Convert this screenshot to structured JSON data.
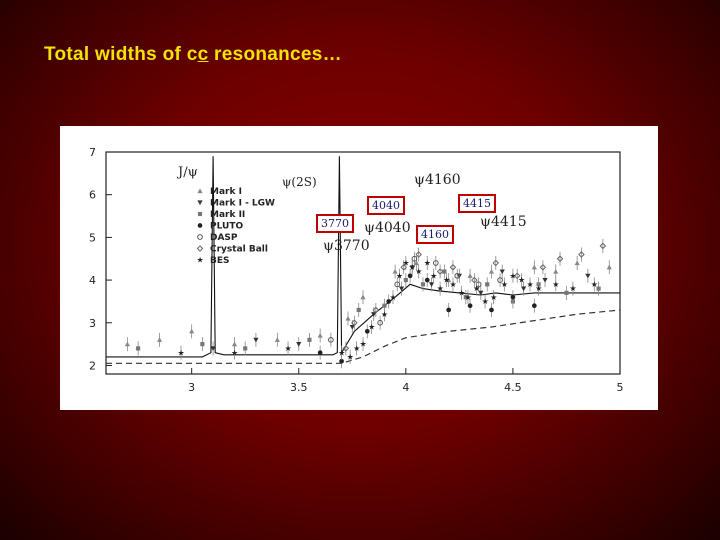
{
  "slide": {
    "title_pre": "Total widths of c",
    "title_cc": "c",
    "title_post": " resonances…"
  },
  "colors": {
    "background": "#6e0000",
    "title": "#f2e400",
    "tag_border": "#c00000"
  },
  "tags": [
    "4040",
    "4415",
    "3770",
    "4160"
  ],
  "chart_data": {
    "type": "scatter",
    "title": "",
    "xlabel": "",
    "ylabel": "",
    "xlim": [
      2.6,
      5.0
    ],
    "ylim": [
      1.8,
      7.0
    ],
    "x_ticks": [
      "3",
      "3.5",
      "4",
      "4.5",
      "5"
    ],
    "y_ticks": [
      "2",
      "3",
      "4",
      "5",
      "6",
      "7"
    ],
    "legend_position": "top-left",
    "resonance_labels": [
      "J/ψ",
      "ψ(2S)",
      "ψ3770",
      "ψ4040",
      "ψ4160",
      "ψ4415"
    ],
    "series": [
      {
        "name": "Mark I",
        "marker": "triangle",
        "points": [
          [
            2.7,
            2.5
          ],
          [
            2.85,
            2.6
          ],
          [
            3.0,
            2.8
          ],
          [
            3.2,
            2.5
          ],
          [
            3.4,
            2.6
          ],
          [
            3.6,
            2.7
          ],
          [
            3.73,
            3.1
          ],
          [
            3.8,
            3.6
          ],
          [
            3.95,
            4.2
          ],
          [
            4.05,
            4.4
          ],
          [
            4.2,
            4.0
          ],
          [
            4.3,
            4.1
          ],
          [
            4.4,
            4.2
          ],
          [
            4.6,
            4.3
          ],
          [
            4.7,
            4.2
          ],
          [
            4.8,
            4.4
          ],
          [
            4.95,
            4.3
          ]
        ]
      },
      {
        "name": "Mark I - LGW",
        "marker": "inverted-triangle",
        "points": [
          [
            3.1,
            2.4
          ],
          [
            3.3,
            2.6
          ],
          [
            3.5,
            2.5
          ],
          [
            3.75,
            2.9
          ],
          [
            3.85,
            3.2
          ],
          [
            3.98,
            3.8
          ],
          [
            4.03,
            4.3
          ],
          [
            4.12,
            3.9
          ],
          [
            4.25,
            4.1
          ],
          [
            4.35,
            3.7
          ],
          [
            4.45,
            4.2
          ],
          [
            4.55,
            3.8
          ],
          [
            4.65,
            4.0
          ],
          [
            4.85,
            4.1
          ]
        ]
      },
      {
        "name": "Mark II",
        "marker": "square",
        "points": [
          [
            2.75,
            2.4
          ],
          [
            3.05,
            2.5
          ],
          [
            3.25,
            2.4
          ],
          [
            3.55,
            2.6
          ],
          [
            3.78,
            3.3
          ],
          [
            3.9,
            3.4
          ],
          [
            4.0,
            4.0
          ],
          [
            4.08,
            3.9
          ],
          [
            4.18,
            4.2
          ],
          [
            4.28,
            3.6
          ],
          [
            4.38,
            3.9
          ],
          [
            4.5,
            3.5
          ],
          [
            4.62,
            3.9
          ],
          [
            4.75,
            3.7
          ],
          [
            4.9,
            3.8
          ]
        ]
      },
      {
        "name": "PLUTO",
        "marker": "circle",
        "points": [
          [
            3.6,
            2.3
          ],
          [
            3.7,
            2.1
          ],
          [
            3.82,
            2.8
          ],
          [
            3.92,
            3.5
          ],
          [
            4.02,
            4.1
          ],
          [
            4.1,
            4.0
          ],
          [
            4.2,
            3.3
          ],
          [
            4.3,
            3.4
          ],
          [
            4.4,
            3.3
          ],
          [
            4.5,
            3.6
          ],
          [
            4.6,
            3.4
          ]
        ]
      },
      {
        "name": "DASP",
        "marker": "open-circle",
        "points": [
          [
            3.65,
            2.6
          ],
          [
            3.88,
            3.0
          ],
          [
            3.96,
            3.9
          ],
          [
            4.04,
            4.5
          ],
          [
            4.14,
            4.4
          ],
          [
            4.24,
            4.1
          ],
          [
            4.34,
            3.9
          ],
          [
            4.44,
            4.0
          ]
        ]
      },
      {
        "name": "Crystal Ball",
        "marker": "open-diamond",
        "points": [
          [
            3.72,
            2.4
          ],
          [
            3.76,
            3.0
          ],
          [
            3.86,
            3.3
          ],
          [
            3.99,
            4.3
          ],
          [
            4.06,
            4.6
          ],
          [
            4.16,
            4.2
          ],
          [
            4.22,
            4.3
          ],
          [
            4.32,
            4.0
          ],
          [
            4.42,
            4.4
          ],
          [
            4.52,
            4.1
          ],
          [
            4.64,
            4.3
          ],
          [
            4.72,
            4.5
          ],
          [
            4.82,
            4.6
          ],
          [
            4.92,
            4.8
          ]
        ]
      },
      {
        "name": "BES",
        "marker": "star",
        "points": [
          [
            2.95,
            2.3
          ],
          [
            3.2,
            2.3
          ],
          [
            3.45,
            2.4
          ],
          [
            3.7,
            2.3
          ],
          [
            3.74,
            2.2
          ],
          [
            3.77,
            2.4
          ],
          [
            3.8,
            2.5
          ],
          [
            3.84,
            2.9
          ],
          [
            3.9,
            3.2
          ],
          [
            3.94,
            3.6
          ],
          [
            3.97,
            4.1
          ],
          [
            4.0,
            4.4
          ],
          [
            4.03,
            4.3
          ],
          [
            4.06,
            4.2
          ],
          [
            4.1,
            4.4
          ],
          [
            4.13,
            4.1
          ],
          [
            4.16,
            3.8
          ],
          [
            4.19,
            4.0
          ],
          [
            4.22,
            3.9
          ],
          [
            4.26,
            3.7
          ],
          [
            4.29,
            3.6
          ],
          [
            4.33,
            3.8
          ],
          [
            4.37,
            3.5
          ],
          [
            4.41,
            3.6
          ],
          [
            4.46,
            3.9
          ],
          [
            4.5,
            4.1
          ],
          [
            4.54,
            4.0
          ],
          [
            4.58,
            3.9
          ],
          [
            4.62,
            3.8
          ],
          [
            4.7,
            3.9
          ],
          [
            4.78,
            3.8
          ],
          [
            4.88,
            3.9
          ]
        ]
      }
    ],
    "fit_solid": [
      [
        2.6,
        2.2
      ],
      [
        3.05,
        2.2
      ],
      [
        3.09,
        2.3
      ],
      [
        3.1,
        6.9
      ],
      [
        3.11,
        2.3
      ],
      [
        3.15,
        2.25
      ],
      [
        3.66,
        2.25
      ],
      [
        3.68,
        2.3
      ],
      [
        3.69,
        6.9
      ],
      [
        3.7,
        2.3
      ],
      [
        3.76,
        2.8
      ],
      [
        3.85,
        3.2
      ],
      [
        3.95,
        3.6
      ],
      [
        4.02,
        3.9
      ],
      [
        4.08,
        3.8
      ],
      [
        4.15,
        3.75
      ],
      [
        4.25,
        3.7
      ],
      [
        4.35,
        3.65
      ],
      [
        4.42,
        3.7
      ],
      [
        4.5,
        3.65
      ],
      [
        4.6,
        3.7
      ],
      [
        4.8,
        3.7
      ],
      [
        5.0,
        3.7
      ]
    ],
    "fit_dashed": [
      [
        2.6,
        2.05
      ],
      [
        3.7,
        2.05
      ],
      [
        3.8,
        2.2
      ],
      [
        3.9,
        2.45
      ],
      [
        4.0,
        2.65
      ],
      [
        4.2,
        2.8
      ],
      [
        4.4,
        2.9
      ],
      [
        4.6,
        3.05
      ],
      [
        4.8,
        3.2
      ],
      [
        5.0,
        3.3
      ]
    ]
  }
}
